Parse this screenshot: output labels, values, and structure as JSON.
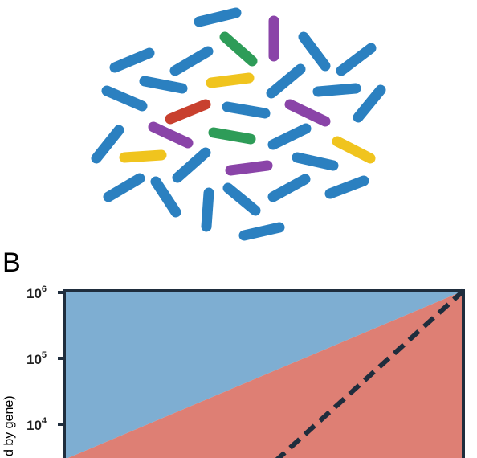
{
  "panel_label": "B",
  "y_axis_label_fragment": "d by gene)",
  "ticks": [
    {
      "base": "10",
      "exp": "6"
    },
    {
      "base": "10",
      "exp": "5"
    },
    {
      "base": "10",
      "exp": "4"
    }
  ],
  "colors": {
    "blue_rod": "#2b80c0",
    "purple_rod": "#8a44a8",
    "green_rod": "#2e9c58",
    "yellow_rod": "#f0c41e",
    "red_rod": "#c8402e",
    "region_upper": "#7eaed2",
    "region_lower": "#de7f74",
    "frame": "#1f2d3d"
  },
  "rods": [
    {
      "color": "blue",
      "x1": 248,
      "y1": 27,
      "x2": 294,
      "y2": 16
    },
    {
      "color": "purple",
      "x1": 341,
      "y1": 26,
      "x2": 341,
      "y2": 70
    },
    {
      "color": "green",
      "x1": 280,
      "y1": 46,
      "x2": 314,
      "y2": 76
    },
    {
      "color": "blue",
      "x1": 143,
      "y1": 84,
      "x2": 186,
      "y2": 66
    },
    {
      "color": "blue",
      "x1": 218,
      "y1": 88,
      "x2": 259,
      "y2": 64
    },
    {
      "color": "blue",
      "x1": 378,
      "y1": 46,
      "x2": 405,
      "y2": 82
    },
    {
      "color": "blue",
      "x1": 425,
      "y1": 88,
      "x2": 462,
      "y2": 60
    },
    {
      "color": "blue",
      "x1": 180,
      "y1": 101,
      "x2": 227,
      "y2": 110
    },
    {
      "color": "yellow",
      "x1": 263,
      "y1": 103,
      "x2": 310,
      "y2": 97
    },
    {
      "color": "blue",
      "x1": 338,
      "y1": 116,
      "x2": 374,
      "y2": 86
    },
    {
      "color": "blue",
      "x1": 396,
      "y1": 114,
      "x2": 443,
      "y2": 110
    },
    {
      "color": "blue",
      "x1": 133,
      "y1": 113,
      "x2": 177,
      "y2": 132
    },
    {
      "color": "red",
      "x1": 212,
      "y1": 148,
      "x2": 256,
      "y2": 130
    },
    {
      "color": "blue",
      "x1": 283,
      "y1": 133,
      "x2": 330,
      "y2": 141
    },
    {
      "color": "purple",
      "x1": 361,
      "y1": 130,
      "x2": 405,
      "y2": 151
    },
    {
      "color": "blue",
      "x1": 446,
      "y1": 146,
      "x2": 474,
      "y2": 112
    },
    {
      "color": "purple",
      "x1": 191,
      "y1": 158,
      "x2": 234,
      "y2": 178
    },
    {
      "color": "green",
      "x1": 266,
      "y1": 165,
      "x2": 312,
      "y2": 173
    },
    {
      "color": "blue",
      "x1": 340,
      "y1": 180,
      "x2": 381,
      "y2": 160
    },
    {
      "color": "blue",
      "x1": 120,
      "y1": 197,
      "x2": 148,
      "y2": 162
    },
    {
      "color": "yellow",
      "x1": 155,
      "y1": 196,
      "x2": 201,
      "y2": 193
    },
    {
      "color": "blue",
      "x1": 221,
      "y1": 221,
      "x2": 256,
      "y2": 190
    },
    {
      "color": "yellow",
      "x1": 420,
      "y1": 176,
      "x2": 461,
      "y2": 197
    },
    {
      "color": "purple",
      "x1": 287,
      "y1": 212,
      "x2": 333,
      "y2": 206
    },
    {
      "color": "blue",
      "x1": 370,
      "y1": 196,
      "x2": 415,
      "y2": 206
    },
    {
      "color": "blue",
      "x1": 135,
      "y1": 245,
      "x2": 174,
      "y2": 222
    },
    {
      "color": "blue",
      "x1": 194,
      "y1": 226,
      "x2": 219,
      "y2": 264
    },
    {
      "color": "blue",
      "x1": 284,
      "y1": 234,
      "x2": 318,
      "y2": 262
    },
    {
      "color": "blue",
      "x1": 340,
      "y1": 245,
      "x2": 380,
      "y2": 223
    },
    {
      "color": "blue",
      "x1": 411,
      "y1": 241,
      "x2": 453,
      "y2": 225
    },
    {
      "color": "blue",
      "x1": 260,
      "y1": 240,
      "x2": 257,
      "y2": 282
    },
    {
      "color": "blue",
      "x1": 304,
      "y1": 293,
      "x2": 348,
      "y2": 283
    }
  ]
}
